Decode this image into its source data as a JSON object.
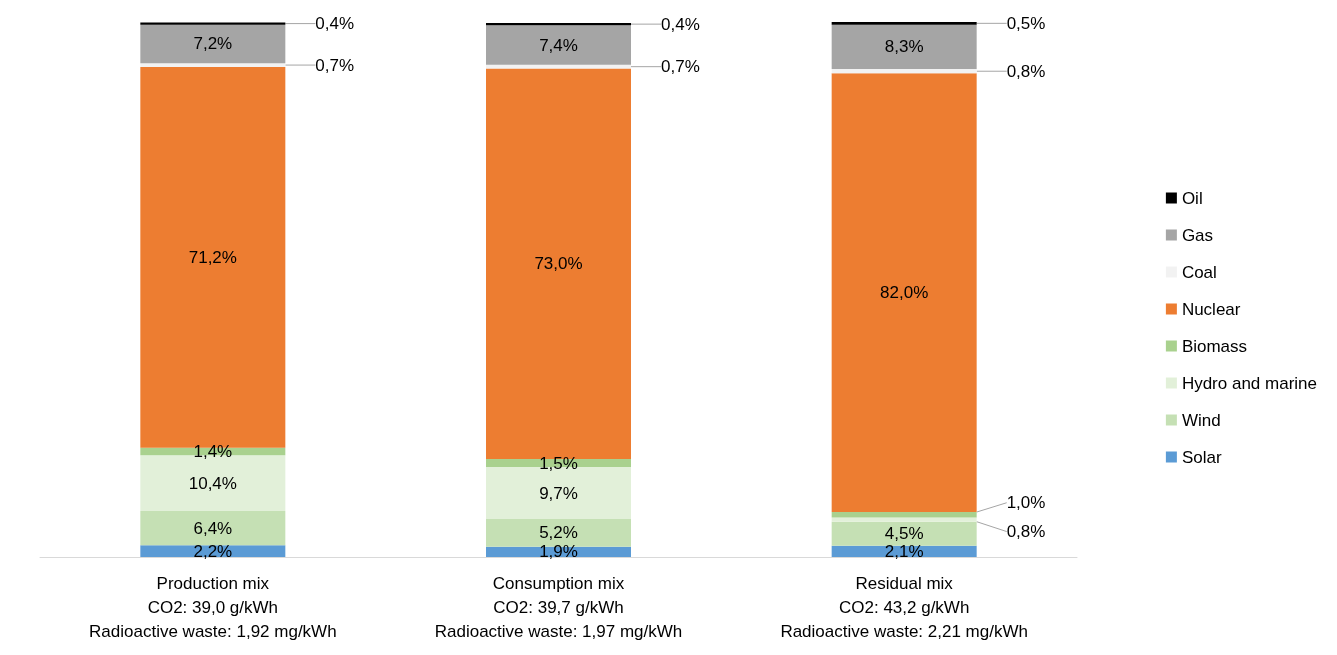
{
  "chart_data": {
    "type": "bar",
    "stacked": true,
    "legend": "right",
    "categories": [
      "Production mix\nCO2: 39,0 g/kWh\nRadioactive waste: 1,92 mg/kWh",
      "Consumption mix\nCO2: 39,7 g/kWh\nRadioactive waste: 1,97 mg/kWh",
      "Residual mix\nCO2: 43,2 g/kWh\nRadioactive waste: 2,21 mg/kWh"
    ],
    "series": [
      {
        "name": "Solar",
        "color": "#5b9bd5",
        "values": [
          2.2,
          1.9,
          2.1
        ],
        "value_labels": [
          "2,2%",
          "1,9%",
          "2,1%"
        ]
      },
      {
        "name": "Wind",
        "color": "#c5e0b4",
        "values": [
          6.4,
          5.2,
          4.5
        ],
        "value_labels": [
          "6,4%",
          "5,2%",
          "4,5%"
        ]
      },
      {
        "name": "Hydro and marine",
        "color": "#e2f0d9",
        "values": [
          10.4,
          9.7,
          0.8
        ],
        "value_labels": [
          "10,4%",
          "9,7%",
          "0,8%"
        ]
      },
      {
        "name": "Biomass",
        "color": "#a9d18e",
        "values": [
          1.4,
          1.5,
          1.0
        ],
        "value_labels": [
          "1,4%",
          "1,5%",
          "1,0%"
        ]
      },
      {
        "name": "Nuclear",
        "color": "#ed7d31",
        "values": [
          71.2,
          73.0,
          82.0
        ],
        "value_labels": [
          "71,2%",
          "73,0%",
          "82,0%"
        ]
      },
      {
        "name": "Coal",
        "color": "#f2f2f2",
        "values": [
          0.7,
          0.7,
          0.8
        ],
        "value_labels": [
          "0,7%",
          "0,7%",
          "0,8%"
        ]
      },
      {
        "name": "Gas",
        "color": "#a5a5a5",
        "values": [
          7.2,
          7.4,
          8.3
        ],
        "value_labels": [
          "7,2%",
          "7,4%",
          "8,3%"
        ]
      },
      {
        "name": "Oil",
        "color": "#000000",
        "values": [
          0.4,
          0.4,
          0.5
        ],
        "value_labels": [
          "0,4%",
          "0,4%",
          "0,5%"
        ]
      }
    ]
  }
}
